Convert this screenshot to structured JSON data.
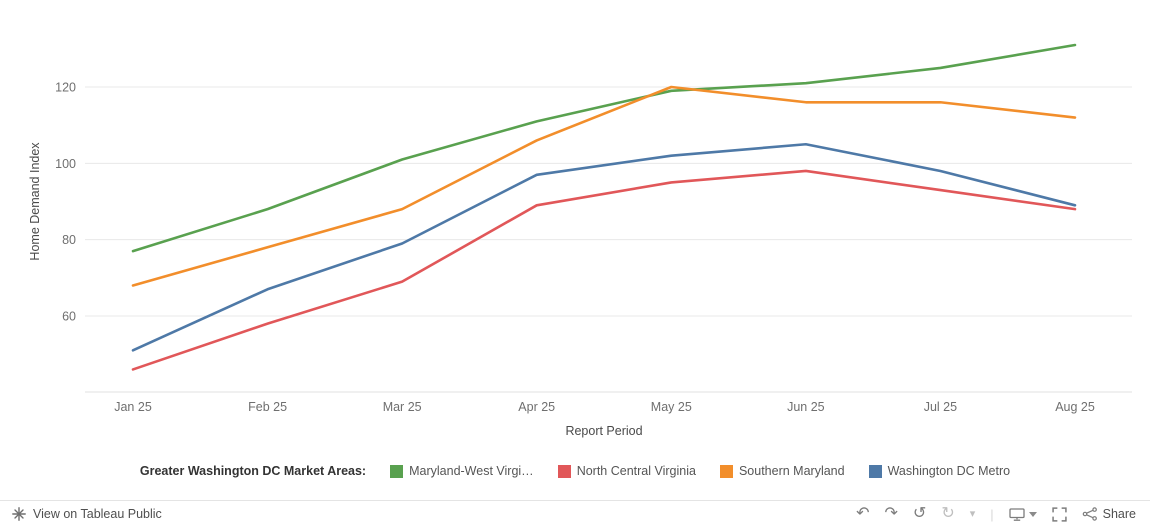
{
  "chart_data": {
    "type": "line",
    "title": "",
    "xlabel": "Report Period",
    "ylabel": "Home Demand Index",
    "x_categories": [
      "Jan 25",
      "Feb 25",
      "Mar 25",
      "Apr 25",
      "May 25",
      "Jun 25",
      "Jul 25",
      "Aug 25"
    ],
    "y_ticks": [
      60,
      80,
      100,
      120
    ],
    "ylim": [
      40,
      139
    ],
    "grid": "horizontal",
    "legend": {
      "title": "Greater Washington DC Market Areas:",
      "position": "bottom"
    },
    "series": [
      {
        "name": "Maryland-West Virgi…",
        "color": "#59a14f",
        "values": [
          77,
          88,
          101,
          111,
          119,
          121,
          125,
          131
        ]
      },
      {
        "name": "North Central Virginia",
        "color": "#e15759",
        "values": [
          46,
          58,
          69,
          89,
          95,
          98,
          93,
          88
        ]
      },
      {
        "name": "Southern Maryland",
        "color": "#f28e2b",
        "values": [
          68,
          78,
          88,
          106,
          120,
          116,
          116,
          112
        ]
      },
      {
        "name": "Washington DC Metro",
        "color": "#4e79a7",
        "values": [
          51,
          67,
          79,
          97,
          102,
          105,
          98,
          89
        ]
      }
    ]
  },
  "toolbar": {
    "view_label": "View on Tableau Public",
    "share_label": "Share",
    "glyph_icons": [
      {
        "name": "undo-icon",
        "glyph": "↶",
        "disabled": false
      },
      {
        "name": "redo-icon",
        "glyph": "↷",
        "disabled": false
      },
      {
        "name": "revert-icon",
        "glyph": "↺",
        "disabled": false
      },
      {
        "name": "refresh-icon",
        "glyph": "↻",
        "disabled": true
      },
      {
        "name": "caret-down-icon",
        "glyph": "▾",
        "disabled": true
      }
    ],
    "svg_icon_names": [
      "download-icon",
      "fullscreen-icon",
      "share-icon",
      "tableau-logo-icon"
    ]
  }
}
